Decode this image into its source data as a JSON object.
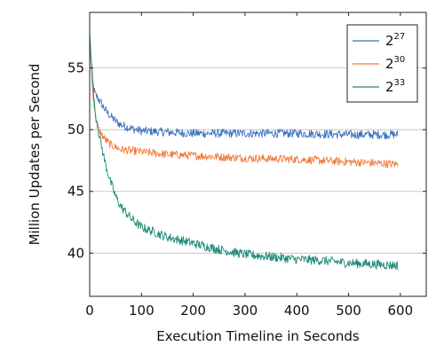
{
  "chart_data": {
    "type": "line",
    "title": "",
    "xlabel": "Execution Timeline in Seconds",
    "ylabel": "Million Updates per Second",
    "xlim": [
      0,
      650
    ],
    "ylim": [
      36.5,
      59.5
    ],
    "xticks": [
      0,
      100,
      200,
      300,
      400,
      500,
      600
    ],
    "yticks": [
      40,
      45,
      50,
      55
    ],
    "grid": "horizontal",
    "legend_position": "top-right",
    "x_end": 595,
    "series": [
      {
        "name_base": "2",
        "name_exp": "27",
        "color": "#3a6fbf",
        "points": [
          [
            0,
            57.5
          ],
          [
            5,
            54.0
          ],
          [
            10,
            52.9
          ],
          [
            20,
            52.3
          ],
          [
            30,
            51.6
          ],
          [
            40,
            51.1
          ],
          [
            50,
            50.7
          ],
          [
            60,
            50.4
          ],
          [
            80,
            50.1
          ],
          [
            100,
            49.9
          ],
          [
            150,
            49.8
          ],
          [
            200,
            49.7
          ],
          [
            300,
            49.7
          ],
          [
            400,
            49.7
          ],
          [
            500,
            49.6
          ],
          [
            595,
            49.6
          ]
        ],
        "noise": 0.35
      },
      {
        "name_base": "2",
        "name_exp": "30",
        "color": "#f07a3a",
        "points": [
          [
            0,
            57.8
          ],
          [
            5,
            53.5
          ],
          [
            10,
            51.4
          ],
          [
            15,
            50.3
          ],
          [
            20,
            49.8
          ],
          [
            30,
            49.2
          ],
          [
            40,
            48.8
          ],
          [
            60,
            48.4
          ],
          [
            80,
            48.3
          ],
          [
            100,
            48.2
          ],
          [
            150,
            48.0
          ],
          [
            200,
            47.9
          ],
          [
            300,
            47.7
          ],
          [
            400,
            47.6
          ],
          [
            500,
            47.4
          ],
          [
            595,
            47.2
          ]
        ],
        "noise": 0.33
      },
      {
        "name_base": "2",
        "name_exp": "33",
        "color": "#1a8a76",
        "points": [
          [
            0,
            58.0
          ],
          [
            5,
            54.5
          ],
          [
            10,
            51.6
          ],
          [
            20,
            49.2
          ],
          [
            30,
            47.3
          ],
          [
            40,
            45.8
          ],
          [
            50,
            44.6
          ],
          [
            60,
            43.8
          ],
          [
            80,
            42.8
          ],
          [
            100,
            42.1
          ],
          [
            150,
            41.3
          ],
          [
            200,
            40.8
          ],
          [
            250,
            40.3
          ],
          [
            300,
            39.9
          ],
          [
            350,
            39.7
          ],
          [
            400,
            39.5
          ],
          [
            450,
            39.4
          ],
          [
            500,
            39.2
          ],
          [
            550,
            39.1
          ],
          [
            595,
            39.0
          ]
        ],
        "noise": 0.38
      }
    ]
  }
}
